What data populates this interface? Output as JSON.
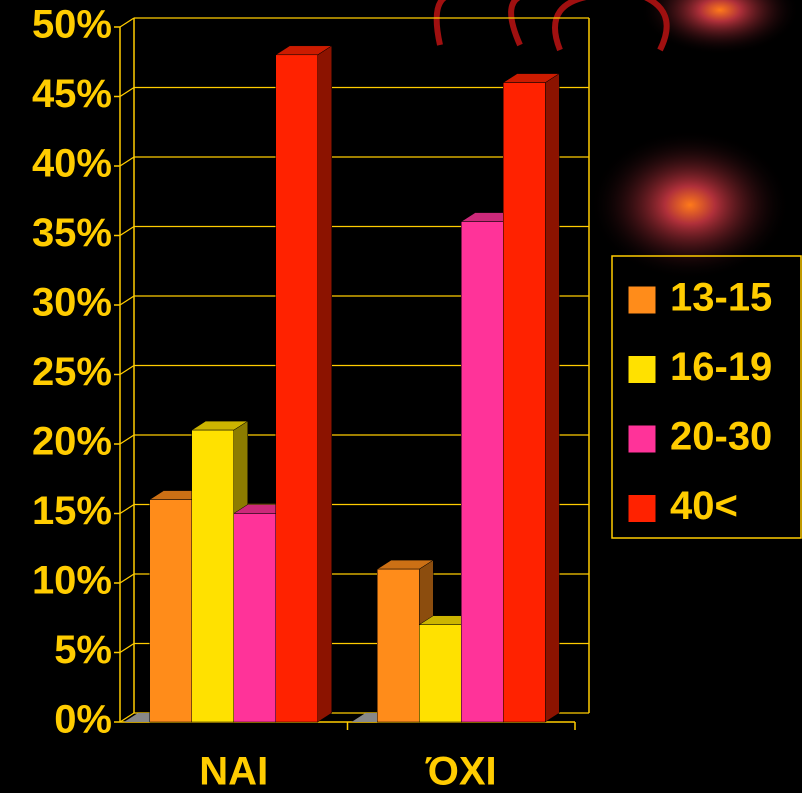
{
  "chart_data": {
    "type": "bar3d",
    "categories": [
      "NAI",
      "ΌΧΙ"
    ],
    "series": [
      {
        "name": "13-15",
        "color": "#ff8c1a",
        "values": [
          16,
          11
        ]
      },
      {
        "name": "16-19",
        "color": "#ffe100",
        "values": [
          21,
          7
        ]
      },
      {
        "name": "20-30",
        "color": "#ff3399",
        "values": [
          15,
          36
        ]
      },
      {
        "name": "40<",
        "color": "#ff2200",
        "values": [
          48,
          46
        ]
      }
    ],
    "ylim": [
      0,
      50
    ],
    "yticks": [
      {
        "value": 0,
        "label": "0%"
      },
      {
        "value": 5,
        "label": "5%"
      },
      {
        "value": 10,
        "label": "10%"
      },
      {
        "value": 15,
        "label": "15%"
      },
      {
        "value": 20,
        "label": "20%"
      },
      {
        "value": 25,
        "label": "25%"
      },
      {
        "value": 30,
        "label": "30%"
      },
      {
        "value": 35,
        "label": "35%"
      },
      {
        "value": 40,
        "label": "40%"
      },
      {
        "value": 45,
        "label": "45%"
      },
      {
        "value": 50,
        "label": "50%"
      }
    ],
    "grid": true,
    "legend": "right"
  }
}
